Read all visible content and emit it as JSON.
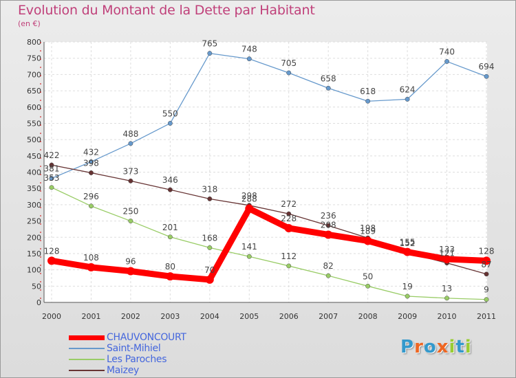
{
  "chart_data": {
    "type": "line",
    "title": "Evolution du Montant de la Dette par Habitant",
    "subtitle": "(en €)",
    "categories": [
      "2000",
      "2001",
      "2002",
      "2003",
      "2004",
      "2005",
      "2006",
      "2007",
      "2008",
      "2009",
      "2010",
      "2011"
    ],
    "ylim": [
      0,
      800
    ],
    "yticks": [
      0,
      50,
      100,
      150,
      200,
      250,
      300,
      350,
      400,
      450,
      500,
      550,
      600,
      650,
      700,
      750,
      800
    ],
    "grid": true,
    "legend_position": "bottom-left",
    "series": [
      {
        "name": "CHAUVONCOURT",
        "color": "#ff0000",
        "values": [
          128,
          108,
          96,
          80,
          70,
          288,
          228,
          208,
          189,
          155,
          133,
          128
        ]
      },
      {
        "name": "Saint-Mihiel",
        "color": "#6699cc",
        "values": [
          381,
          432,
          488,
          550,
          765,
          748,
          705,
          658,
          618,
          624,
          740,
          694
        ]
      },
      {
        "name": "Les Paroches",
        "color": "#99cc66",
        "values": [
          353,
          296,
          250,
          201,
          168,
          141,
          112,
          82,
          50,
          19,
          13,
          9
        ]
      },
      {
        "name": "Maizey",
        "color": "#663333",
        "values": [
          422,
          398,
          373,
          346,
          318,
          298,
          272,
          236,
          198,
          152,
          121,
          87
        ]
      }
    ]
  },
  "logo": {
    "text": "Proxiti",
    "colors": [
      "#3399cc",
      "#ee6622",
      "#3399cc",
      "#ee6622",
      "#99cc33",
      "#3399cc",
      "#99cc33"
    ]
  }
}
